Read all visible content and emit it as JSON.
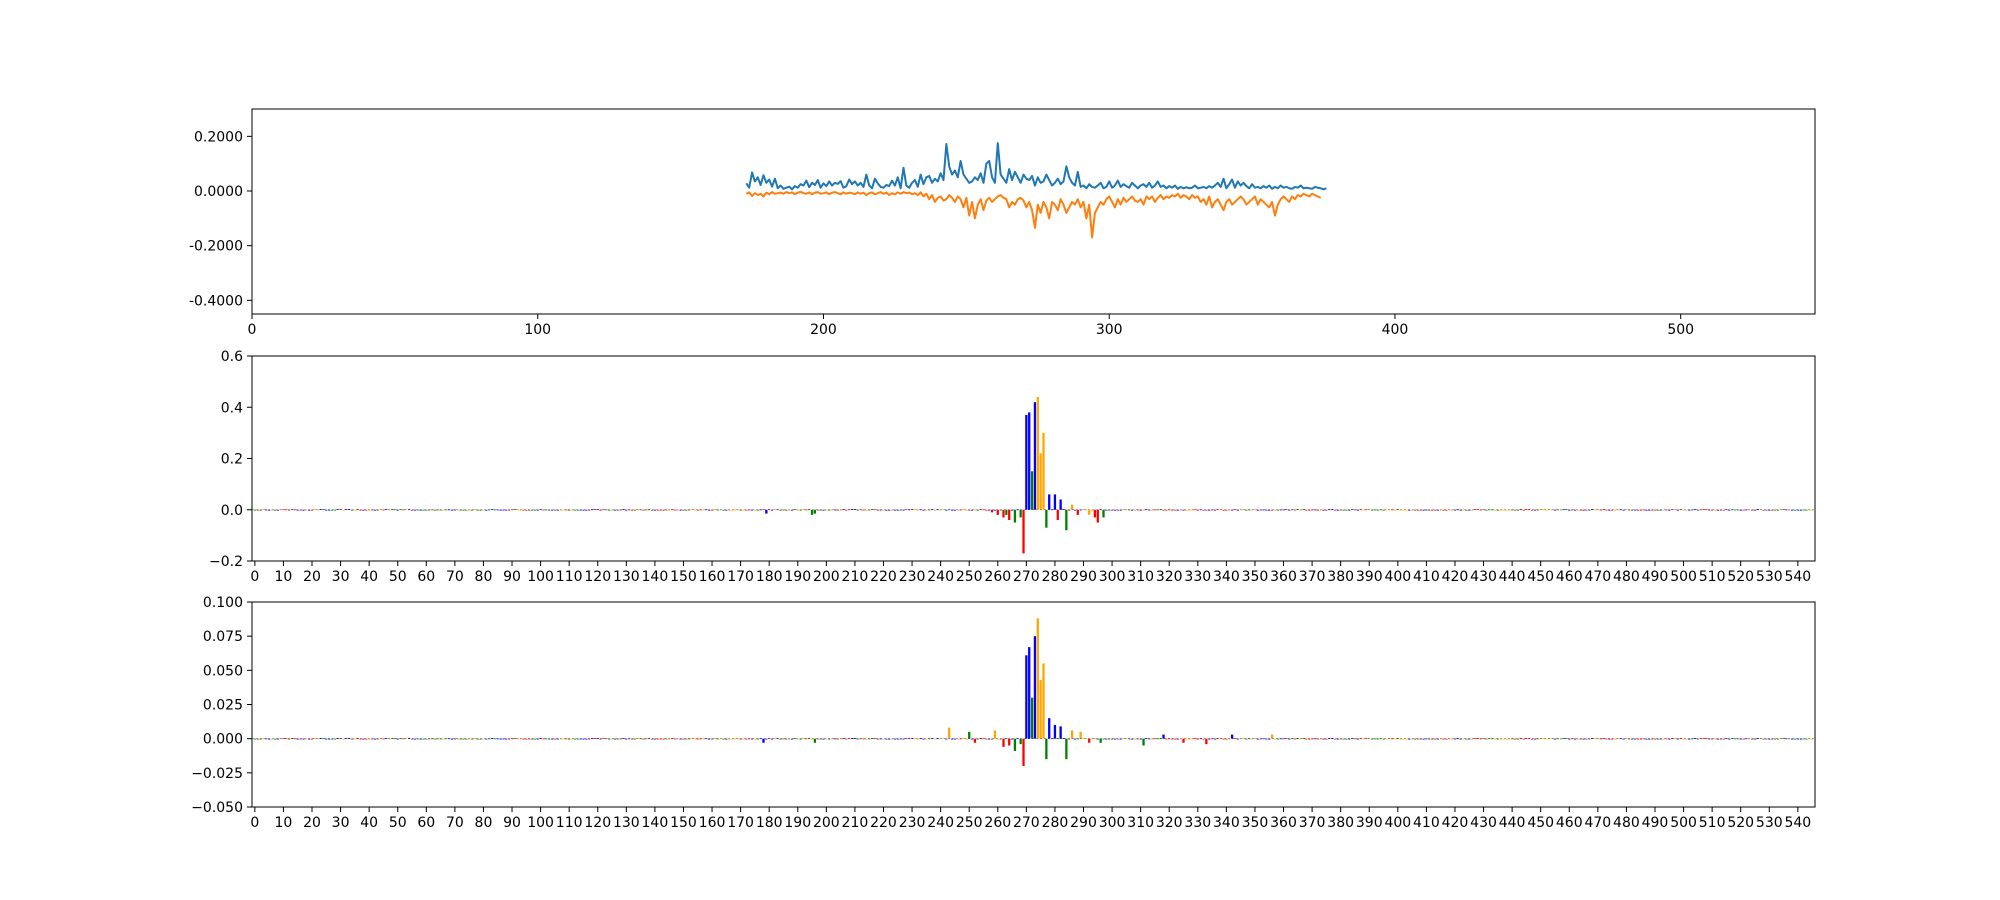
{
  "chart_data": [
    {
      "type": "line",
      "title": "",
      "xlabel": "",
      "ylabel": "",
      "xlim": [
        0,
        547
      ],
      "ylim": [
        -0.45,
        0.3
      ],
      "x_ticks": [
        0,
        100,
        200,
        300,
        400,
        500
      ],
      "y_ticks": [
        -0.4,
        -0.2,
        0.0,
        0.2
      ],
      "y_tick_labels": [
        "-0.4000",
        "-0.2000",
        "0.0000",
        "0.2000"
      ],
      "grid": false,
      "x_start": 173,
      "x_step": 1,
      "series": [
        {
          "color": "#1f77b4",
          "values": [
            0.028,
            0.012,
            0.068,
            0.035,
            0.05,
            0.022,
            0.058,
            0.03,
            0.042,
            0.016,
            0.045,
            0.01,
            0.02,
            0.008,
            0.012,
            0.016,
            0.006,
            0.018,
            0.012,
            0.025,
            0.02,
            0.038,
            0.014,
            0.03,
            0.022,
            0.04,
            0.012,
            0.028,
            0.018,
            0.035,
            0.02,
            0.03,
            0.026,
            0.036,
            0.012,
            0.018,
            0.042,
            0.025,
            0.035,
            0.02,
            0.03,
            0.015,
            0.06,
            0.02,
            0.01,
            0.045,
            0.028,
            0.015,
            0.012,
            0.022,
            0.018,
            0.038,
            0.02,
            0.05,
            0.01,
            0.085,
            0.02,
            0.012,
            0.03,
            0.04,
            0.015,
            0.06,
            0.025,
            0.05,
            0.055,
            0.03,
            0.045,
            0.035,
            0.065,
            0.04,
            0.172,
            0.09,
            0.06,
            0.075,
            0.05,
            0.11,
            0.06,
            0.045,
            0.03,
            0.035,
            0.05,
            0.04,
            0.065,
            0.03,
            0.1,
            0.11,
            0.05,
            0.03,
            0.175,
            0.06,
            0.045,
            0.03,
            0.08,
            0.04,
            0.07,
            0.05,
            0.03,
            0.06,
            0.045,
            0.04,
            0.055,
            0.02,
            0.05,
            0.03,
            0.035,
            0.06,
            0.04,
            0.02,
            0.03,
            0.045,
            0.025,
            0.035,
            0.09,
            0.05,
            0.03,
            0.02,
            0.07,
            0.015,
            0.02,
            0.01,
            0.025,
            0.015,
            0.012,
            0.02,
            0.03,
            0.01,
            0.015,
            0.035,
            0.012,
            0.02,
            0.038,
            0.015,
            0.025,
            0.018,
            0.012,
            0.03,
            0.02,
            0.01,
            0.02,
            0.025,
            0.015,
            0.03,
            0.012,
            0.02,
            0.035,
            0.015,
            0.02,
            0.01,
            0.018,
            0.012,
            0.02,
            0.008,
            0.015,
            0.01,
            0.014,
            0.01,
            0.012,
            0.02,
            0.01,
            0.012,
            0.015,
            0.01,
            0.018,
            0.012,
            0.02,
            0.03,
            0.015,
            0.045,
            0.01,
            0.025,
            0.042,
            0.012,
            0.035,
            0.02,
            0.03,
            0.018,
            0.01,
            0.025,
            0.012,
            0.015,
            0.01,
            0.018,
            0.012,
            0.02,
            0.008,
            0.015,
            0.01,
            0.02,
            0.012,
            0.015,
            0.01,
            0.008,
            0.015,
            0.012,
            0.02,
            0.01,
            0.012,
            0.01,
            0.008,
            0.015,
            0.012,
            0.01,
            0.006,
            0.01
          ]
        },
        {
          "color": "#ff7f0e",
          "values": [
            -0.01,
            -0.005,
            -0.018,
            -0.008,
            -0.015,
            -0.01,
            -0.02,
            -0.006,
            -0.012,
            -0.004,
            -0.01,
            -0.008,
            -0.006,
            -0.01,
            -0.004,
            -0.008,
            -0.005,
            -0.012,
            -0.006,
            -0.003,
            -0.008,
            -0.01,
            -0.005,
            -0.012,
            -0.006,
            -0.004,
            -0.01,
            -0.008,
            -0.005,
            -0.012,
            -0.006,
            -0.004,
            -0.008,
            -0.012,
            -0.005,
            -0.01,
            -0.006,
            -0.008,
            -0.012,
            -0.005,
            -0.01,
            -0.006,
            -0.015,
            -0.008,
            -0.005,
            -0.012,
            -0.008,
            -0.004,
            -0.01,
            -0.006,
            -0.015,
            -0.008,
            -0.012,
            -0.005,
            -0.01,
            -0.004,
            -0.008,
            -0.006,
            -0.012,
            -0.008,
            -0.015,
            -0.005,
            -0.02,
            -0.01,
            -0.03,
            -0.015,
            -0.04,
            -0.025,
            -0.02,
            -0.035,
            -0.03,
            -0.015,
            -0.025,
            -0.04,
            -0.02,
            -0.03,
            -0.06,
            -0.025,
            -0.09,
            -0.04,
            -0.1,
            -0.05,
            -0.03,
            -0.07,
            -0.035,
            -0.025,
            -0.04,
            -0.03,
            -0.02,
            -0.015,
            -0.025,
            -0.03,
            -0.06,
            -0.04,
            -0.05,
            -0.03,
            -0.025,
            -0.035,
            -0.06,
            -0.04,
            -0.07,
            -0.135,
            -0.05,
            -0.08,
            -0.04,
            -0.06,
            -0.1,
            -0.04,
            -0.05,
            -0.07,
            -0.03,
            -0.05,
            -0.08,
            -0.06,
            -0.04,
            -0.05,
            -0.03,
            -0.06,
            -0.04,
            -0.1,
            -0.05,
            -0.17,
            -0.08,
            -0.06,
            -0.04,
            -0.05,
            -0.03,
            -0.02,
            -0.04,
            -0.06,
            -0.03,
            -0.05,
            -0.025,
            -0.04,
            -0.03,
            -0.02,
            -0.035,
            -0.04,
            -0.03,
            -0.05,
            -0.02,
            -0.03,
            -0.02,
            -0.04,
            -0.025,
            -0.015,
            -0.03,
            -0.02,
            -0.025,
            -0.015,
            -0.02,
            -0.01,
            -0.025,
            -0.015,
            -0.02,
            -0.03,
            -0.015,
            -0.025,
            -0.02,
            -0.04,
            -0.03,
            -0.05,
            -0.02,
            -0.06,
            -0.04,
            -0.03,
            -0.05,
            -0.07,
            -0.04,
            -0.03,
            -0.05,
            -0.04,
            -0.03,
            -0.02,
            -0.03,
            -0.05,
            -0.04,
            -0.03,
            -0.02,
            -0.05,
            -0.03,
            -0.04,
            -0.05,
            -0.06,
            -0.04,
            -0.09,
            -0.05,
            -0.03,
            -0.02,
            -0.03,
            -0.04,
            -0.02,
            -0.03,
            -0.015,
            -0.02,
            -0.01,
            -0.015,
            -0.02,
            -0.01,
            -0.015,
            -0.02,
            -0.025
          ]
        }
      ]
    },
    {
      "type": "bar",
      "title": "",
      "xlabel": "",
      "ylabel": "",
      "xlim": [
        -1,
        546
      ],
      "ylim": [
        -0.2,
        0.6
      ],
      "x_ticks": [
        0,
        10,
        20,
        30,
        40,
        50,
        60,
        70,
        80,
        90,
        100,
        110,
        120,
        130,
        140,
        150,
        160,
        170,
        180,
        190,
        200,
        210,
        220,
        230,
        240,
        250,
        260,
        270,
        280,
        290,
        300,
        310,
        320,
        330,
        340,
        350,
        360,
        370,
        380,
        390,
        400,
        410,
        420,
        430,
        440,
        450,
        460,
        470,
        480,
        490,
        500,
        510,
        520,
        530,
        540
      ],
      "y_ticks": [
        -0.2,
        0.0,
        0.2,
        0.4,
        0.6
      ],
      "y_tick_labels": [
        "−0.2",
        "0.0",
        "0.2",
        "0.4",
        "0.6"
      ],
      "grid": false,
      "bar_colors": {
        "A": "#008000",
        "C": "#0000ff",
        "G": "#ffa500",
        "T": "#ff0000"
      },
      "peak_bars": [
        {
          "x": 258,
          "base": "T",
          "value": -0.01
        },
        {
          "x": 260,
          "base": "T",
          "value": -0.02
        },
        {
          "x": 262,
          "base": "T",
          "value": -0.03
        },
        {
          "x": 263,
          "base": "A",
          "value": -0.02
        },
        {
          "x": 264,
          "base": "T",
          "value": -0.04
        },
        {
          "x": 266,
          "base": "A",
          "value": -0.05
        },
        {
          "x": 268,
          "base": "A",
          "value": -0.03
        },
        {
          "x": 269,
          "base": "T",
          "value": -0.17
        },
        {
          "x": 270,
          "base": "C",
          "value": 0.37
        },
        {
          "x": 271,
          "base": "C",
          "value": 0.38
        },
        {
          "x": 272,
          "base": "A",
          "value": 0.15
        },
        {
          "x": 273,
          "base": "C",
          "value": 0.42
        },
        {
          "x": 274,
          "base": "G",
          "value": 0.44
        },
        {
          "x": 275,
          "base": "G",
          "value": 0.22
        },
        {
          "x": 276,
          "base": "G",
          "value": 0.3
        },
        {
          "x": 277,
          "base": "A",
          "value": -0.07
        },
        {
          "x": 278,
          "base": "C",
          "value": 0.06
        },
        {
          "x": 280,
          "base": "C",
          "value": 0.06
        },
        {
          "x": 281,
          "base": "T",
          "value": -0.04
        },
        {
          "x": 282,
          "base": "C",
          "value": 0.04
        },
        {
          "x": 284,
          "base": "A",
          "value": -0.08
        },
        {
          "x": 286,
          "base": "G",
          "value": 0.02
        },
        {
          "x": 288,
          "base": "T",
          "value": -0.02
        },
        {
          "x": 292,
          "base": "G",
          "value": -0.02
        },
        {
          "x": 294,
          "base": "T",
          "value": -0.03
        },
        {
          "x": 295,
          "base": "T",
          "value": -0.05
        },
        {
          "x": 297,
          "base": "A",
          "value": -0.03
        },
        {
          "x": 179,
          "base": "C",
          "value": -0.015
        },
        {
          "x": 195,
          "base": "A",
          "value": -0.02
        },
        {
          "x": 196,
          "base": "A",
          "value": -0.015
        }
      ]
    },
    {
      "type": "bar",
      "title": "",
      "xlabel": "",
      "ylabel": "",
      "xlim": [
        -1,
        546
      ],
      "ylim": [
        -0.05,
        0.1
      ],
      "x_ticks": [
        0,
        10,
        20,
        30,
        40,
        50,
        60,
        70,
        80,
        90,
        100,
        110,
        120,
        130,
        140,
        150,
        160,
        170,
        180,
        190,
        200,
        210,
        220,
        230,
        240,
        250,
        260,
        270,
        280,
        290,
        300,
        310,
        320,
        330,
        340,
        350,
        360,
        370,
        380,
        390,
        400,
        410,
        420,
        430,
        440,
        450,
        460,
        470,
        480,
        490,
        500,
        510,
        520,
        530,
        540
      ],
      "y_ticks": [
        -0.05,
        -0.025,
        0.0,
        0.025,
        0.05,
        0.075,
        0.1
      ],
      "y_tick_labels": [
        "−0.050",
        "−0.025",
        "0.000",
        "0.025",
        "0.050",
        "0.075",
        "0.100"
      ],
      "grid": false,
      "bar_colors": {
        "A": "#008000",
        "C": "#0000ff",
        "G": "#ffa500",
        "T": "#ff0000"
      },
      "peak_bars": [
        {
          "x": 178,
          "base": "C",
          "value": -0.003
        },
        {
          "x": 196,
          "base": "A",
          "value": -0.003
        },
        {
          "x": 243,
          "base": "G",
          "value": 0.008
        },
        {
          "x": 250,
          "base": "A",
          "value": 0.005
        },
        {
          "x": 252,
          "base": "T",
          "value": -0.003
        },
        {
          "x": 259,
          "base": "G",
          "value": 0.006
        },
        {
          "x": 262,
          "base": "T",
          "value": -0.006
        },
        {
          "x": 264,
          "base": "T",
          "value": -0.005
        },
        {
          "x": 266,
          "base": "A",
          "value": -0.009
        },
        {
          "x": 268,
          "base": "A",
          "value": -0.004
        },
        {
          "x": 269,
          "base": "T",
          "value": -0.02
        },
        {
          "x": 270,
          "base": "C",
          "value": 0.061
        },
        {
          "x": 271,
          "base": "C",
          "value": 0.067
        },
        {
          "x": 272,
          "base": "A",
          "value": 0.03
        },
        {
          "x": 273,
          "base": "C",
          "value": 0.075
        },
        {
          "x": 274,
          "base": "G",
          "value": 0.088
        },
        {
          "x": 275,
          "base": "G",
          "value": 0.043
        },
        {
          "x": 276,
          "base": "G",
          "value": 0.055
        },
        {
          "x": 277,
          "base": "A",
          "value": -0.015
        },
        {
          "x": 278,
          "base": "C",
          "value": 0.015
        },
        {
          "x": 280,
          "base": "C",
          "value": 0.01
        },
        {
          "x": 282,
          "base": "C",
          "value": 0.009
        },
        {
          "x": 284,
          "base": "A",
          "value": -0.015
        },
        {
          "x": 286,
          "base": "G",
          "value": 0.006
        },
        {
          "x": 289,
          "base": "G",
          "value": 0.005
        },
        {
          "x": 292,
          "base": "T",
          "value": -0.003
        },
        {
          "x": 296,
          "base": "A",
          "value": -0.003
        },
        {
          "x": 311,
          "base": "A",
          "value": -0.005
        },
        {
          "x": 318,
          "base": "C",
          "value": 0.003
        },
        {
          "x": 325,
          "base": "T",
          "value": -0.003
        },
        {
          "x": 333,
          "base": "T",
          "value": -0.004
        },
        {
          "x": 342,
          "base": "C",
          "value": 0.003
        },
        {
          "x": 356,
          "base": "G",
          "value": 0.003
        }
      ]
    }
  ]
}
